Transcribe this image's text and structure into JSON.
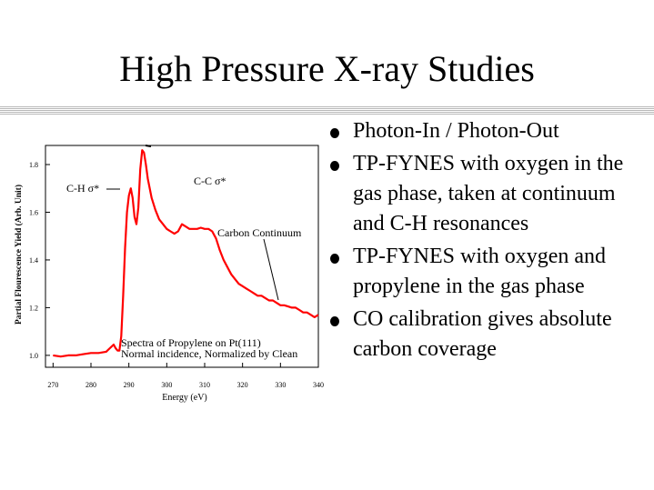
{
  "slide": {
    "title": "High Pressure X-ray Studies"
  },
  "bullets": [
    "Photon-In / Photon-Out",
    "TP-FYNES with oxygen in the gas phase, taken at continuum and C-H resonances",
    "TP-FYNES with oxygen and propylene in the gas phase",
    "CO calibration gives absolute carbon coverage"
  ],
  "chart_data": {
    "type": "line",
    "xlabel": "Energy (eV)",
    "ylabel": "Partial Flourescence Yield (Arb. Unit)",
    "xlim": [
      268,
      340
    ],
    "ylim": [
      0.95,
      1.88
    ],
    "x_ticks": [
      "270",
      "280",
      "290",
      "300",
      "310",
      "320",
      "330",
      "340"
    ],
    "y_ticks": [
      "1.0",
      "1.2",
      "1.4",
      "1.6",
      "1.8"
    ],
    "x_tick_values": [
      270,
      280,
      290,
      300,
      310,
      320,
      330,
      340
    ],
    "y_tick_values": [
      1.0,
      1.2,
      1.4,
      1.6,
      1.8
    ],
    "grid": false,
    "line_color": "#ff0000",
    "annotations": [
      "C-H σ*",
      "C-C σ*",
      "Carbon Continuum",
      "Spectra of Propylene on Pt(111)",
      "Normal incidence, Normalized by Clean"
    ],
    "series": [
      {
        "x": [
          270,
          272,
          274,
          276,
          278,
          280,
          282,
          284,
          285,
          286,
          286.5,
          287,
          287.5,
          288,
          288.5,
          289,
          289.5,
          290,
          290.5,
          291,
          291.5,
          292,
          292.5,
          293,
          293.5,
          294,
          294.5,
          295,
          296,
          297,
          298,
          299,
          300,
          301,
          302,
          303,
          304,
          305,
          306,
          307,
          308,
          309,
          310,
          311,
          312,
          313,
          314,
          315,
          316,
          317,
          318,
          319,
          320,
          321,
          322,
          323,
          324,
          325,
          326,
          327,
          328,
          329,
          330,
          331,
          332,
          333,
          334,
          335,
          336,
          337,
          338,
          339,
          340
        ],
        "y": [
          1.0,
          0.995,
          1.0,
          1.0,
          1.005,
          1.01,
          1.01,
          1.015,
          1.03,
          1.045,
          1.03,
          1.02,
          1.02,
          1.08,
          1.25,
          1.45,
          1.6,
          1.67,
          1.7,
          1.66,
          1.58,
          1.55,
          1.62,
          1.78,
          1.86,
          1.85,
          1.8,
          1.74,
          1.66,
          1.61,
          1.57,
          1.55,
          1.53,
          1.52,
          1.51,
          1.52,
          1.55,
          1.54,
          1.53,
          1.53,
          1.53,
          1.535,
          1.53,
          1.53,
          1.52,
          1.49,
          1.44,
          1.4,
          1.37,
          1.34,
          1.32,
          1.3,
          1.29,
          1.28,
          1.27,
          1.26,
          1.25,
          1.25,
          1.24,
          1.23,
          1.23,
          1.22,
          1.21,
          1.21,
          1.205,
          1.2,
          1.2,
          1.19,
          1.18,
          1.18,
          1.17,
          1.16,
          1.17
        ]
      }
    ]
  }
}
